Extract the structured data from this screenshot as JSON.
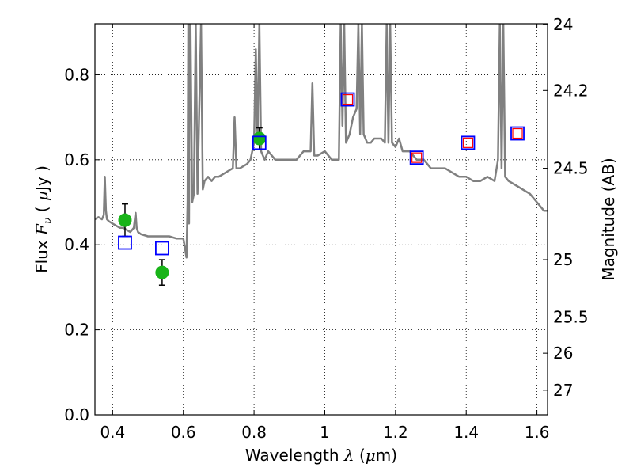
{
  "chart_data": {
    "type": "scatter",
    "xlabel_prefix": "Wavelength  ",
    "xlabel_symbol": "λ",
    "xlabel_unit_open": " (",
    "xlabel_unit_mu": "μ",
    "xlabel_unit_close": "m)",
    "ylabel_prefix": "Flux  ",
    "ylabel_symbol": "F",
    "ylabel_sub": "ν",
    "ylabel_unit_open": "  ( ",
    "ylabel_unit_mu": "μ",
    "ylabel_unit_close": "Jy )",
    "y2label": "Magnitude (AB)",
    "xlim": [
      0.35,
      1.63
    ],
    "ylim": [
      0.0,
      0.92
    ],
    "grid": true,
    "x_ticks": [
      0.4,
      0.6,
      0.8,
      1.0,
      1.2,
      1.4,
      1.6
    ],
    "x_tick_labels": [
      "0.4",
      "0.6",
      "0.8",
      "1",
      "1.2",
      "1.4",
      "1.6"
    ],
    "y_ticks": [
      0.0,
      0.2,
      0.4,
      0.6,
      0.8
    ],
    "y_tick_labels": [
      "0.0",
      "0.2",
      "0.4",
      "0.6",
      "0.8"
    ],
    "y2_ticks": [
      {
        "label": "24",
        "flux": 0.918
      },
      {
        "label": "24.2",
        "flux": 0.763
      },
      {
        "label": "24.5",
        "flux": 0.58
      },
      {
        "label": "25",
        "flux": 0.365
      },
      {
        "label": "25.5",
        "flux": 0.23
      },
      {
        "label": "26",
        "flux": 0.145
      },
      {
        "label": "27",
        "flux": 0.058
      }
    ],
    "series": [
      {
        "style": "line",
        "color": "#808080",
        "x": [
          0.35,
          0.36,
          0.37,
          0.375,
          0.378,
          0.381,
          0.384,
          0.39,
          0.4,
          0.41,
          0.42,
          0.43,
          0.44,
          0.45,
          0.46,
          0.465,
          0.468,
          0.472,
          0.48,
          0.5,
          0.52,
          0.54,
          0.56,
          0.58,
          0.6,
          0.605,
          0.609,
          0.612,
          0.614,
          0.616,
          0.618,
          0.62,
          0.625,
          0.63,
          0.635,
          0.64,
          0.65,
          0.655,
          0.66,
          0.67,
          0.68,
          0.69,
          0.7,
          0.72,
          0.74,
          0.745,
          0.75,
          0.76,
          0.78,
          0.79,
          0.8,
          0.805,
          0.81,
          0.815,
          0.82,
          0.83,
          0.84,
          0.86,
          0.88,
          0.9,
          0.92,
          0.94,
          0.96,
          0.965,
          0.97,
          0.98,
          1.0,
          1.02,
          1.04,
          1.045,
          1.05,
          1.055,
          1.06,
          1.07,
          1.08,
          1.09,
          1.095,
          1.1,
          1.105,
          1.11,
          1.12,
          1.13,
          1.14,
          1.16,
          1.17,
          1.175,
          1.18,
          1.185,
          1.19,
          1.2,
          1.21,
          1.22,
          1.24,
          1.26,
          1.28,
          1.3,
          1.32,
          1.34,
          1.36,
          1.38,
          1.4,
          1.42,
          1.44,
          1.46,
          1.48,
          1.49,
          1.495,
          1.5,
          1.505,
          1.51,
          1.52,
          1.54,
          1.56,
          1.58,
          1.6,
          1.62,
          1.63
        ],
        "values": [
          0.46,
          0.465,
          0.46,
          0.47,
          0.56,
          0.48,
          0.46,
          0.455,
          0.45,
          0.445,
          0.44,
          0.44,
          0.435,
          0.43,
          0.44,
          0.475,
          0.44,
          0.43,
          0.425,
          0.42,
          0.42,
          0.42,
          0.42,
          0.415,
          0.415,
          0.39,
          0.37,
          0.5,
          0.92,
          0.45,
          0.92,
          0.92,
          0.5,
          0.52,
          0.92,
          0.52,
          0.92,
          0.53,
          0.55,
          0.56,
          0.55,
          0.56,
          0.56,
          0.57,
          0.58,
          0.7,
          0.58,
          0.58,
          0.59,
          0.6,
          0.64,
          0.86,
          0.64,
          0.92,
          0.62,
          0.6,
          0.62,
          0.6,
          0.6,
          0.6,
          0.6,
          0.62,
          0.62,
          0.78,
          0.61,
          0.61,
          0.62,
          0.6,
          0.6,
          0.92,
          0.68,
          0.92,
          0.64,
          0.66,
          0.7,
          0.72,
          0.92,
          0.66,
          0.92,
          0.66,
          0.64,
          0.64,
          0.65,
          0.65,
          0.64,
          0.92,
          0.64,
          0.92,
          0.64,
          0.63,
          0.65,
          0.62,
          0.62,
          0.6,
          0.6,
          0.58,
          0.58,
          0.58,
          0.57,
          0.56,
          0.56,
          0.55,
          0.55,
          0.56,
          0.55,
          0.6,
          0.92,
          0.58,
          0.92,
          0.56,
          0.55,
          0.54,
          0.53,
          0.52,
          0.5,
          0.48,
          0.48
        ]
      },
      {
        "style": "errorbar",
        "color": "#19b419",
        "x": [
          0.435,
          0.54,
          0.815
        ],
        "values": [
          0.458,
          0.335,
          0.65
        ],
        "errors": [
          0.038,
          0.03,
          0.025
        ]
      },
      {
        "style": "square-open",
        "color": "#0000ff",
        "x": [
          0.435,
          0.54,
          0.815,
          1.065,
          1.26,
          1.405,
          1.545
        ],
        "values": [
          0.405,
          0.392,
          0.64,
          0.742,
          0.605,
          0.64,
          0.662
        ]
      },
      {
        "style": "square-small-open",
        "color": "#ff0000",
        "x": [
          1.065,
          1.26,
          1.405,
          1.545
        ],
        "values": [
          0.742,
          0.605,
          0.64,
          0.662
        ]
      }
    ]
  }
}
